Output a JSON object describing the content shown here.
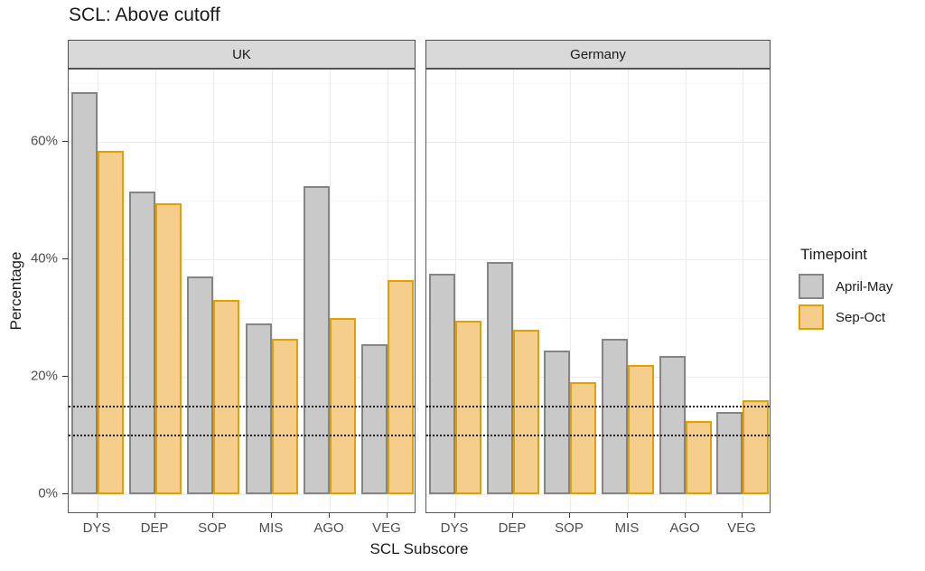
{
  "title": "SCL: Above cutoff",
  "axes": {
    "x_title": "SCL Subscore",
    "y_title": "Percentage",
    "y_ticks": [
      {
        "label": "0%",
        "value": 0
      },
      {
        "label": "20%",
        "value": 20
      },
      {
        "label": "40%",
        "value": 40
      },
      {
        "label": "60%",
        "value": 60
      }
    ]
  },
  "legend": {
    "title": "Timepoint",
    "items": [
      {
        "label": "April-May",
        "fill": "#c9c9c9",
        "stroke": "#858585"
      },
      {
        "label": "Sep-Oct",
        "fill": "#f5ce8e",
        "stroke": "#e69f00"
      }
    ]
  },
  "chart_data": {
    "type": "bar",
    "title": "SCL: Above cutoff",
    "xlabel": "SCL Subscore",
    "ylabel": "Percentage",
    "categories": [
      "DYS",
      "DEP",
      "SOP",
      "MIS",
      "AGO",
      "VEG"
    ],
    "facets": [
      {
        "label": "UK",
        "series": [
          {
            "name": "April-May",
            "values": [
              68.5,
              51.5,
              37.0,
              29.0,
              52.5,
              25.5
            ]
          },
          {
            "name": "Sep-Oct",
            "values": [
              58.5,
              49.5,
              33.0,
              26.5,
              30.0,
              36.5
            ]
          }
        ]
      },
      {
        "label": "Germany",
        "series": [
          {
            "name": "April-May",
            "values": [
              37.5,
              39.5,
              24.5,
              26.5,
              23.5,
              14.0
            ]
          },
          {
            "name": "Sep-Oct",
            "values": [
              29.5,
              28.0,
              19.0,
              22.0,
              12.5,
              16.0
            ]
          }
        ]
      }
    ],
    "reference_lines": [
      15,
      10
    ],
    "reference_line_style": "dotted",
    "ylim": [
      0,
      72.5
    ],
    "y_major_ticks": [
      0,
      20,
      40,
      60
    ],
    "y_minor_ticks": [
      10,
      30,
      50,
      70
    ],
    "grid": true,
    "legend_position": "right",
    "legend_title": "Timepoint",
    "colors": {
      "april_may_fill": "#c9c9c9",
      "april_may_stroke": "#858585",
      "sep_oct_fill": "#f5ce8e",
      "sep_oct_stroke": "#e69f00",
      "strip_background": "#d9d9d9",
      "reference_line": "#1a1a1a"
    }
  }
}
